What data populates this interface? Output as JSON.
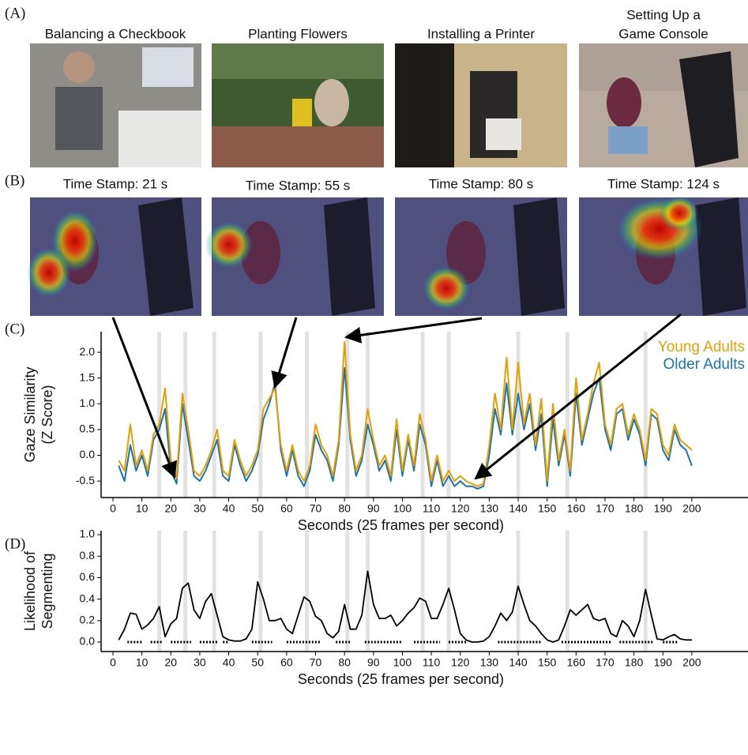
{
  "panels": {
    "labels": [
      "(A)",
      "(B)",
      "(C)",
      "(D)"
    ],
    "activities": [
      [
        "Balancing a Checkbook"
      ],
      [
        "Planting Flowers"
      ],
      [
        "Installing a Printer"
      ],
      [
        "Setting Up a",
        "Game Console"
      ]
    ],
    "timestamps": [
      "Time Stamp: 21 s",
      "Time Stamp: 55 s",
      "Time Stamp: 80 s",
      "Time Stamp: 124 s"
    ]
  },
  "chart_data": [
    {
      "type": "line",
      "xlabel": "Seconds (25 frames per second)",
      "ylabel": [
        "Gaze Similarity",
        "(Z Score)"
      ],
      "xlim": [
        -4.09,
        219.4
      ],
      "ylim": [
        -0.82,
        2.4
      ],
      "xticks": [
        0,
        10,
        20,
        30,
        40,
        50,
        60,
        70,
        80,
        90,
        100,
        110,
        120,
        130,
        140,
        150,
        160,
        170,
        180,
        190,
        200
      ],
      "yticks": [
        -0.5,
        {
          "value": 0,
          "label": "0.0"
        },
        0.5,
        {
          "value": 1,
          "label": "1.0"
        },
        1.5,
        {
          "value": 2,
          "label": "2.0"
        }
      ],
      "boundaries": [
        16,
        25,
        35,
        51,
        67,
        81,
        88,
        107,
        116,
        140,
        157,
        184
      ],
      "legend": "top-right",
      "x": [
        2,
        4,
        6,
        8,
        10,
        12,
        14,
        16,
        18,
        20,
        22,
        24,
        26,
        28,
        30,
        32,
        34,
        36,
        38,
        40,
        42,
        44,
        46,
        48,
        50,
        52,
        54,
        56,
        58,
        60,
        62,
        64,
        66,
        68,
        70,
        72,
        74,
        76,
        78,
        80,
        82,
        84,
        86,
        88,
        90,
        92,
        94,
        96,
        98,
        100,
        102,
        104,
        106,
        108,
        110,
        112,
        114,
        116,
        118,
        120,
        122,
        124,
        126,
        128,
        130,
        132,
        134,
        136,
        138,
        140,
        142,
        144,
        146,
        148,
        150,
        152,
        154,
        156,
        158,
        160,
        162,
        164,
        166,
        168,
        170,
        172,
        174,
        176,
        178,
        180,
        182,
        184,
        186,
        188,
        190,
        192,
        194,
        196,
        198,
        200
      ],
      "series": [
        {
          "name": "Older Adults",
          "color": "#1a74b0",
          "values": [
            -0.2,
            -0.5,
            0.2,
            -0.3,
            0.0,
            -0.4,
            0.3,
            0.5,
            0.9,
            -0.3,
            -0.55,
            1.0,
            0.3,
            -0.4,
            -0.5,
            -0.3,
            0.0,
            0.3,
            -0.4,
            -0.5,
            0.2,
            -0.2,
            -0.5,
            -0.3,
            0.0,
            0.7,
            1.0,
            1.4,
            0.1,
            -0.4,
            0.1,
            -0.4,
            -0.6,
            -0.3,
            0.4,
            0.1,
            -0.1,
            -0.5,
            0.2,
            1.7,
            0.3,
            -0.4,
            -0.1,
            0.6,
            0.2,
            -0.3,
            -0.1,
            -0.5,
            0.5,
            -0.4,
            0.3,
            -0.3,
            0.6,
            0.2,
            -0.6,
            -0.1,
            -0.6,
            -0.4,
            -0.6,
            -0.5,
            -0.6,
            -0.6,
            -0.65,
            -0.6,
            0.0,
            0.9,
            0.4,
            1.4,
            0.4,
            1.2,
            0.5,
            1.0,
            0.1,
            0.8,
            -0.6,
            0.7,
            -0.2,
            0.4,
            -0.4,
            1.2,
            0.2,
            0.7,
            1.2,
            1.5,
            0.5,
            0.1,
            0.8,
            0.9,
            0.3,
            0.7,
            0.4,
            -0.2,
            0.8,
            0.7,
            0.1,
            -0.1,
            0.5,
            0.2,
            0.1,
            -0.2
          ]
        },
        {
          "name": "Young Adults",
          "color": "#e69f00",
          "values": [
            -0.1,
            -0.3,
            0.6,
            -0.2,
            0.1,
            -0.3,
            0.4,
            0.6,
            1.3,
            -0.1,
            -0.45,
            1.2,
            0.5,
            -0.3,
            -0.4,
            -0.2,
            0.1,
            0.5,
            -0.3,
            -0.4,
            0.3,
            -0.1,
            -0.4,
            -0.2,
            0.1,
            0.9,
            1.1,
            1.3,
            0.2,
            -0.3,
            0.2,
            -0.3,
            -0.5,
            -0.2,
            0.6,
            0.2,
            0.0,
            -0.4,
            0.3,
            2.2,
            0.4,
            -0.3,
            0.0,
            0.9,
            0.3,
            -0.2,
            0.0,
            -0.4,
            0.7,
            -0.3,
            0.4,
            -0.2,
            0.8,
            0.3,
            -0.5,
            0.0,
            -0.5,
            -0.3,
            -0.5,
            -0.4,
            -0.5,
            -0.55,
            -0.6,
            -0.55,
            0.2,
            1.2,
            0.5,
            1.9,
            0.5,
            1.8,
            0.6,
            1.2,
            0.2,
            1.1,
            -0.5,
            1.0,
            -0.1,
            0.5,
            -0.3,
            1.5,
            0.3,
            0.8,
            1.4,
            1.8,
            0.6,
            0.2,
            0.9,
            1.0,
            0.4,
            0.8,
            0.5,
            -0.1,
            0.9,
            0.8,
            0.2,
            0.0,
            0.6,
            0.3,
            0.2,
            0.1
          ]
        }
      ]
    },
    {
      "type": "line",
      "xlabel": "Seconds (25 frames per second)",
      "ylabel": [
        "Likelihood of",
        "Segmenting"
      ],
      "xlim": [
        -4.09,
        219.4
      ],
      "ylim": [
        -0.088,
        1.037
      ],
      "xticks": [
        0,
        10,
        20,
        30,
        40,
        50,
        60,
        70,
        80,
        90,
        100,
        110,
        120,
        130,
        140,
        150,
        160,
        170,
        180,
        190,
        200
      ],
      "yticks": [
        {
          "value": 0,
          "label": "0.0"
        },
        0.2,
        0.4,
        0.6,
        0.8,
        {
          "value": 1,
          "label": "1.0"
        }
      ],
      "boundaries": [
        16,
        25,
        35,
        51,
        67,
        81,
        88,
        107,
        116,
        140,
        157,
        184
      ],
      "color": "#000000",
      "rug": [
        [
          5,
          10
        ],
        [
          13,
          17
        ],
        [
          20,
          27
        ],
        [
          30,
          36
        ],
        [
          38,
          40
        ],
        [
          48,
          55
        ],
        [
          60,
          72
        ],
        [
          77,
          82
        ],
        [
          87,
          100
        ],
        [
          104,
          113
        ],
        [
          116,
          122
        ],
        [
          133,
          148
        ],
        [
          155,
          172
        ],
        [
          175,
          187
        ],
        [
          190,
          195
        ]
      ],
      "x": [
        2,
        4,
        6,
        8,
        10,
        12,
        14,
        16,
        18,
        20,
        22,
        24,
        26,
        28,
        30,
        32,
        34,
        36,
        38,
        40,
        42,
        44,
        46,
        48,
        50,
        52,
        54,
        56,
        58,
        60,
        62,
        64,
        66,
        68,
        70,
        72,
        74,
        76,
        78,
        80,
        82,
        84,
        86,
        88,
        90,
        92,
        94,
        96,
        98,
        100,
        102,
        104,
        106,
        108,
        110,
        112,
        114,
        116,
        118,
        120,
        122,
        124,
        126,
        128,
        130,
        132,
        134,
        136,
        138,
        140,
        142,
        144,
        146,
        148,
        150,
        152,
        154,
        156,
        158,
        160,
        162,
        164,
        166,
        168,
        170,
        172,
        174,
        176,
        178,
        180,
        182,
        184,
        186,
        188,
        190,
        192,
        194,
        196,
        198,
        200
      ],
      "values": [
        0.02,
        0.12,
        0.27,
        0.26,
        0.12,
        0.16,
        0.22,
        0.33,
        0.05,
        0.17,
        0.22,
        0.5,
        0.55,
        0.3,
        0.22,
        0.38,
        0.45,
        0.25,
        0.05,
        0.02,
        0.01,
        0.01,
        0.03,
        0.12,
        0.56,
        0.4,
        0.2,
        0.2,
        0.22,
        0.12,
        0.08,
        0.25,
        0.42,
        0.38,
        0.24,
        0.2,
        0.08,
        0.04,
        0.1,
        0.35,
        0.12,
        0.12,
        0.25,
        0.66,
        0.35,
        0.22,
        0.22,
        0.25,
        0.15,
        0.2,
        0.27,
        0.32,
        0.41,
        0.38,
        0.22,
        0.22,
        0.35,
        0.5,
        0.3,
        0.08,
        0.02,
        0.0,
        0.0,
        0.01,
        0.05,
        0.15,
        0.27,
        0.2,
        0.28,
        0.52,
        0.35,
        0.2,
        0.15,
        0.08,
        0.02,
        0.0,
        0.02,
        0.15,
        0.3,
        0.25,
        0.3,
        0.35,
        0.22,
        0.2,
        0.22,
        0.08,
        0.05,
        0.2,
        0.15,
        0.05,
        0.2,
        0.49,
        0.25,
        0.03,
        0.02,
        0.05,
        0.07,
        0.03,
        0.02,
        0.02
      ]
    }
  ]
}
